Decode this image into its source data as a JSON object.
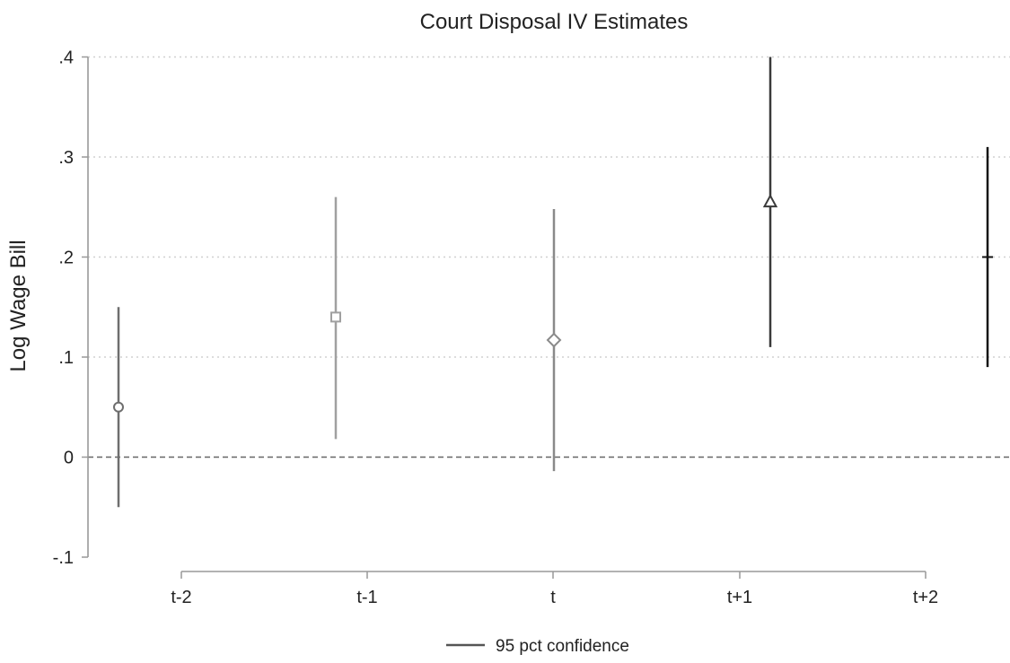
{
  "chart_data": {
    "type": "scatter",
    "title": "Court Disposal IV Estimates",
    "xlabel": "",
    "ylabel": "Log Wage Bill",
    "ylim": [
      -0.1,
      0.4
    ],
    "yticks": [
      {
        "value": 0.4,
        "label": ".4"
      },
      {
        "value": 0.3,
        "label": ".3"
      },
      {
        "value": 0.2,
        "label": ".2"
      },
      {
        "value": 0.1,
        "label": ".1"
      },
      {
        "value": 0.0,
        "label": "0"
      },
      {
        "value": -0.1,
        "label": "-.1"
      }
    ],
    "categories": [
      "t-2",
      "t-1",
      "t",
      "t+1",
      "t+2"
    ],
    "grid": true,
    "reference_line": 0,
    "points": [
      {
        "category": "t-2",
        "estimate": 0.05,
        "ci_low": -0.05,
        "ci_high": 0.15,
        "marker": "circle",
        "color": "#6e6e6e"
      },
      {
        "category": "t-1",
        "estimate": 0.14,
        "ci_low": 0.018,
        "ci_high": 0.26,
        "marker": "square",
        "color": "#a0a0a0"
      },
      {
        "category": "t",
        "estimate": 0.117,
        "ci_low": -0.014,
        "ci_high": 0.248,
        "marker": "diamond",
        "color": "#8a8a8a"
      },
      {
        "category": "t+1",
        "estimate": 0.255,
        "ci_low": 0.11,
        "ci_high": 0.4,
        "marker": "triangle",
        "color": "#3a3a3a"
      },
      {
        "category": "t+2",
        "estimate": 0.2,
        "ci_low": 0.09,
        "ci_high": 0.31,
        "marker": "plus",
        "color": "#111111"
      }
    ],
    "legend": {
      "label": "95 pct confidence",
      "position": "bottom-center",
      "color": "#555555"
    }
  }
}
